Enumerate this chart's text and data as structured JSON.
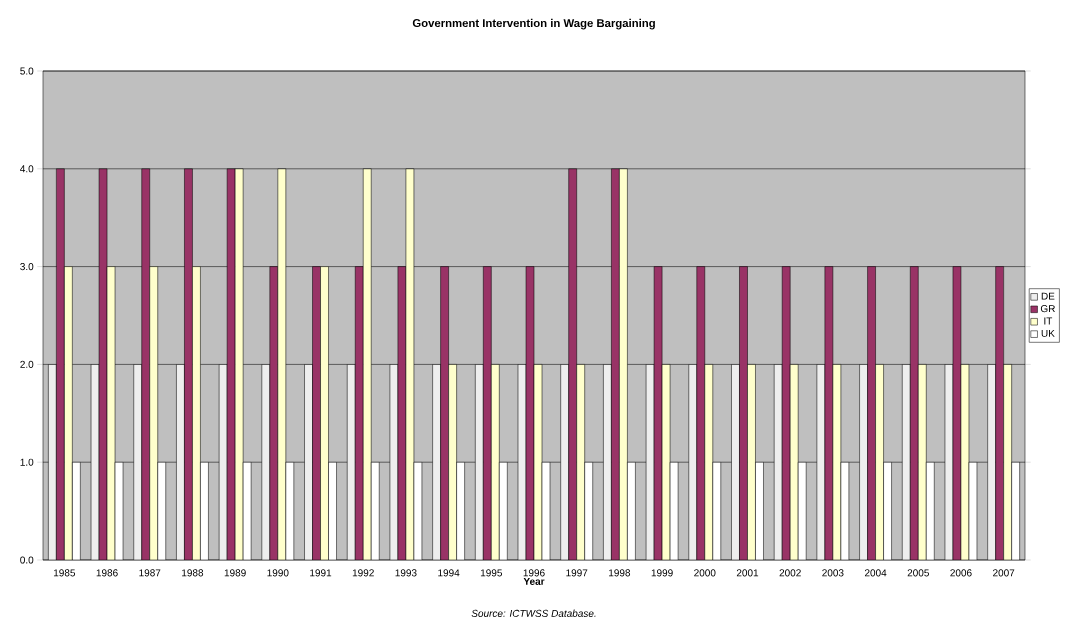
{
  "chart_data": {
    "type": "bar",
    "title": "Government Intervention in Wage Bargaining",
    "xlabel": "Year",
    "annotations": [
      "Source: ICTWSS Database."
    ],
    "categories": [
      "1985",
      "1986",
      "1987",
      "1988",
      "1989",
      "1990",
      "1991",
      "1992",
      "1993",
      "1994",
      "1995",
      "1996",
      "1997",
      "1998",
      "1999",
      "2000",
      "2001",
      "2002",
      "2003",
      "2004",
      "2005",
      "2006",
      "2007"
    ],
    "series": [
      {
        "name": "DE",
        "color": "#eeeeee",
        "values": [
          2,
          2,
          2,
          2,
          2,
          2,
          2,
          2,
          2,
          2,
          2,
          2,
          2,
          2,
          2,
          2,
          2,
          2,
          2,
          2,
          2,
          2,
          2
        ]
      },
      {
        "name": "GR",
        "color": "#993366",
        "values": [
          4,
          4,
          4,
          4,
          4,
          3,
          3,
          3,
          3,
          3,
          3,
          3,
          4,
          4,
          3,
          3,
          3,
          3,
          3,
          3,
          3,
          3,
          3
        ]
      },
      {
        "name": "IT",
        "color": "#ffffcc",
        "values": [
          3,
          3,
          3,
          3,
          4,
          4,
          3,
          4,
          4,
          2,
          2,
          2,
          2,
          4,
          2,
          2,
          2,
          2,
          2,
          2,
          2,
          2,
          2
        ]
      },
      {
        "name": "UK",
        "color": "#ffffff",
        "values": [
          1,
          1,
          1,
          1,
          1,
          1,
          1,
          1,
          1,
          1,
          1,
          1,
          1,
          1,
          1,
          1,
          1,
          1,
          1,
          1,
          1,
          1,
          1
        ]
      }
    ],
    "ylim": [
      0,
      5
    ],
    "yticks": [
      {
        "value": 0,
        "label": "0.0"
      },
      {
        "value": 1,
        "label": "1.0"
      },
      {
        "value": 2,
        "label": "2.0"
      },
      {
        "value": 3,
        "label": "3.0"
      },
      {
        "value": 4,
        "label": "4.0"
      },
      {
        "value": 5,
        "label": "5.0"
      }
    ],
    "grid": "y",
    "legend": "right"
  }
}
